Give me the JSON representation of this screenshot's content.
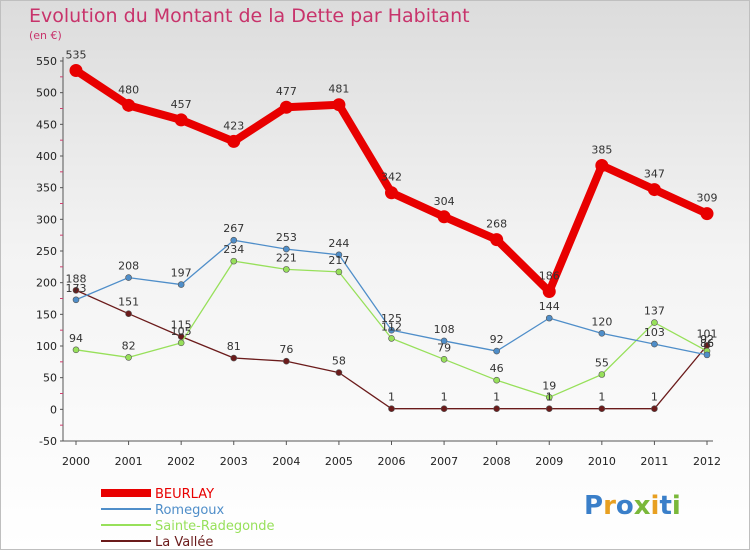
{
  "header": {
    "title": "Evolution du Montant de la Dette par Habitant",
    "unit": "(en €)"
  },
  "logo": {
    "text": "Proxiti",
    "colors": [
      "#3a7fc9",
      "#e8a021",
      "#3a7fc9",
      "#7ab83a",
      "#e8a021",
      "#3a7fc9",
      "#7ab83a"
    ]
  },
  "chart_data": {
    "type": "line",
    "title": "Evolution du Montant de la Dette par Habitant",
    "ylabel": "(en €)",
    "x": [
      "2000",
      "2001",
      "2002",
      "2003",
      "2004",
      "2005",
      "2006",
      "2007",
      "2008",
      "2009",
      "2010",
      "2011",
      "2012"
    ],
    "ylim": [
      -50,
      550
    ],
    "yticks": [
      -50,
      0,
      50,
      100,
      150,
      200,
      250,
      300,
      350,
      400,
      450,
      500,
      550
    ],
    "grid": false,
    "legend": "bottom-left",
    "series": [
      {
        "name": "BEURLAY",
        "color": "#e80000",
        "values": [
          535,
          480,
          457,
          423,
          477,
          481,
          342,
          304,
          268,
          186,
          385,
          347,
          309
        ]
      },
      {
        "name": "Romegoux",
        "color": "#4f8ec9",
        "values": [
          173,
          208,
          197,
          267,
          253,
          244,
          125,
          108,
          92,
          144,
          120,
          103,
          86
        ]
      },
      {
        "name": "Sainte-Radegonde",
        "color": "#97e05a",
        "values": [
          94,
          82,
          105,
          234,
          221,
          217,
          112,
          79,
          46,
          19,
          55,
          137,
          92
        ]
      },
      {
        "name": "La Vallée",
        "color": "#6b1b1b",
        "values": [
          188,
          151,
          115,
          81,
          76,
          58,
          1,
          1,
          1,
          1,
          1,
          1,
          101
        ]
      }
    ],
    "data_labels": [
      [
        "535",
        "480",
        "457",
        "423",
        "477",
        "481",
        "342",
        "304",
        "268",
        "186",
        "385",
        "347",
        "309"
      ],
      [
        "173",
        "208",
        "197",
        "267",
        "253",
        "244",
        "125",
        "108",
        "92",
        "144",
        "120",
        "103",
        "86"
      ],
      [
        "94",
        "82",
        "105",
        "234",
        "221",
        "217",
        "112",
        "79",
        "46",
        "19",
        "55",
        "137",
        "92"
      ],
      [
        "188",
        "151",
        "115",
        "81",
        "76",
        "58",
        "1",
        "1",
        "1",
        "1",
        "1",
        "1",
        "101"
      ]
    ]
  }
}
